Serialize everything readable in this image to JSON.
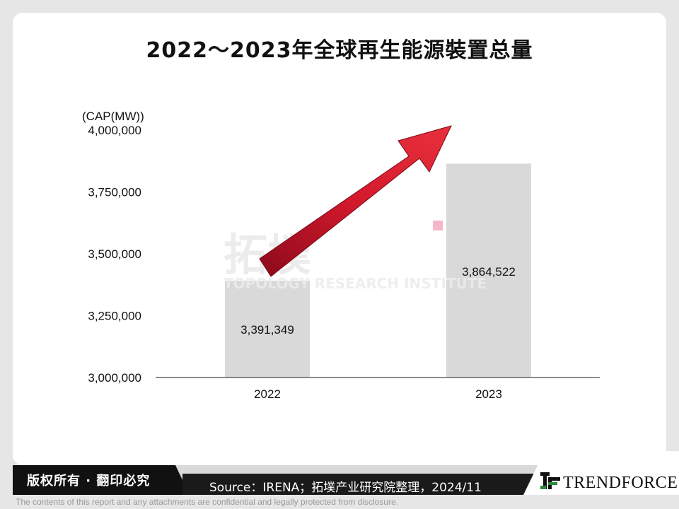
{
  "title": "2022～2023年全球再生能源裝置总量",
  "chart_data": {
    "type": "bar",
    "ylabel": "(CAP(MW))",
    "ylim": [
      3000000,
      4000000
    ],
    "yticks": [
      3000000,
      3250000,
      3500000,
      3750000,
      4000000
    ],
    "ytick_labels": [
      "3,000,000",
      "3,250,000",
      "3,500,000",
      "3,750,000",
      "4,000,000"
    ],
    "categories": [
      "2022",
      "2023"
    ],
    "values": [
      3391349,
      3864522
    ],
    "value_labels": [
      "3,391,349",
      "3,864,522"
    ],
    "bar_color": "#d9d9d9",
    "arrow_color": "#c8102e",
    "grid": false
  },
  "watermark": {
    "brand": "拓墣",
    "subtitle": "TOPOLOGY RESEARCH INSTITUTE"
  },
  "footer": {
    "copyright": "版权所有 · 翻印必究",
    "source": "Source：IRENA；拓墣产业研究院整理，2024/11",
    "logo": "TRENDFORCE",
    "disclaimer": "The contents of this report and any attachments are confidential and legally protected from disclosure."
  }
}
